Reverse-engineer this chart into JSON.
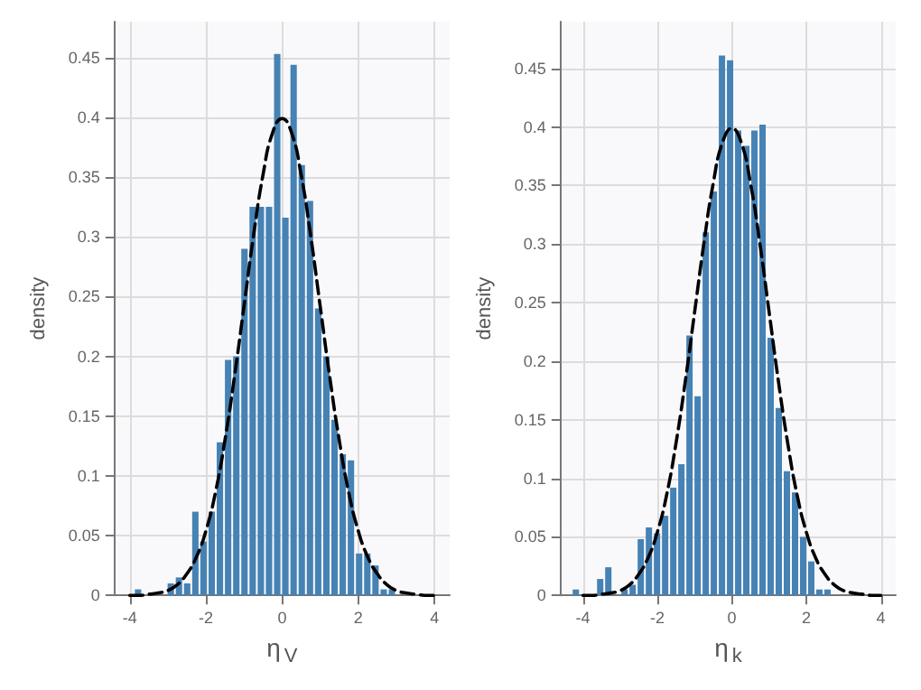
{
  "chart_data": [
    {
      "type": "histogram",
      "xlabel": "η$_{V}$",
      "ylabel": "density",
      "color": "#4682b4",
      "grid": true,
      "bins": [
        -3.89,
        -3.675,
        -3.46,
        -3.245,
        -3.03,
        -2.815,
        -2.6,
        -2.385,
        -2.17,
        -1.955,
        -1.74,
        -1.525,
        -1.31,
        -1.095,
        -0.88,
        -0.665,
        -0.45,
        -0.235,
        -0.02,
        0.195,
        0.41,
        0.625,
        0.84,
        1.055,
        1.27,
        1.485,
        1.7,
        1.915,
        2.13,
        2.345,
        2.56,
        2.775,
        2.99
      ],
      "values": [
        0.005,
        0,
        0,
        0,
        0.01,
        0.015,
        0.01,
        0.07,
        0.045,
        0.07,
        0.128,
        0.197,
        0.2,
        0.29,
        0.325,
        0.325,
        0.325,
        0.453,
        0.316,
        0.444,
        0.36,
        0.33,
        0.24,
        0.2,
        0.147,
        0.118,
        0.113,
        0.035,
        0.035,
        0.025,
        0.005,
        0.005
      ],
      "series": [
        {
          "type": "line",
          "color": "#000000",
          "line_style": "dashed",
          "marker": "none",
          "x": [
            -4,
            -3.75,
            -3.5,
            -3.25,
            -3,
            -2.75,
            -2.5,
            -2.25,
            -2,
            -1.75,
            -1.5,
            -1.25,
            -1,
            -0.75,
            -0.5,
            -0.25,
            0,
            0.25,
            0.5,
            0.75,
            1,
            1.25,
            1.5,
            1.75,
            2,
            2.25,
            2.5,
            2.75,
            3,
            3.25,
            3.5,
            3.75,
            4
          ],
          "values": [
            0,
            0,
            0.001,
            0.002,
            0.004,
            0.009,
            0.018,
            0.032,
            0.054,
            0.086,
            0.13,
            0.183,
            0.242,
            0.301,
            0.352,
            0.387,
            0.399,
            0.387,
            0.352,
            0.301,
            0.242,
            0.183,
            0.13,
            0.086,
            0.054,
            0.032,
            0.018,
            0.009,
            0.004,
            0.002,
            0.001,
            0,
            0
          ]
        }
      ],
      "xlim": [
        -4.4,
        4.4
      ],
      "xticks": [
        -4,
        -2,
        0,
        2,
        4
      ],
      "ylim": [
        0,
        0.48
      ],
      "yticks": [
        0,
        0.05,
        0.1,
        0.15,
        0.2,
        0.25,
        0.3,
        0.35,
        0.4,
        0.45
      ]
    },
    {
      "type": "histogram",
      "xlabel": "η$_{k}$",
      "ylabel": "density",
      "color": "#4682b4",
      "grid": true,
      "bins": [
        -4.299,
        -4.081,
        -3.863,
        -3.645,
        -3.427,
        -3.209,
        -2.991,
        -2.773,
        -2.555,
        -2.337,
        -2.119,
        -1.901,
        -1.683,
        -1.465,
        -1.247,
        -1.029,
        -0.811,
        -0.593,
        -0.375,
        -0.157,
        0.061,
        0.279,
        0.497,
        0.715,
        0.933,
        1.151,
        1.369,
        1.587,
        1.805,
        2.023,
        2.241,
        2.459,
        2.677
      ],
      "values": [
        0.005,
        0,
        0,
        0.014,
        0.024,
        0,
        0.005,
        0.009,
        0.048,
        0.058,
        0.053,
        0.068,
        0.092,
        0.112,
        0.222,
        0.17,
        0.31,
        0.345,
        0.461,
        0.457,
        0.397,
        0.384,
        0.397,
        0.402,
        0.22,
        0.16,
        0.106,
        0.088,
        0.05,
        0.029,
        0.005,
        0.005
      ],
      "series": [
        {
          "type": "line",
          "color": "#000000",
          "line_style": "dashed",
          "marker": "none",
          "x": [
            -4,
            -3.75,
            -3.5,
            -3.25,
            -3,
            -2.75,
            -2.5,
            -2.25,
            -2,
            -1.75,
            -1.5,
            -1.25,
            -1,
            -0.75,
            -0.5,
            -0.25,
            0,
            0.25,
            0.5,
            0.75,
            1,
            1.25,
            1.5,
            1.75,
            2,
            2.25,
            2.5,
            2.75,
            3,
            3.25,
            3.5,
            3.75,
            4
          ],
          "values": [
            0,
            0,
            0.001,
            0.002,
            0.004,
            0.009,
            0.018,
            0.032,
            0.054,
            0.086,
            0.13,
            0.183,
            0.242,
            0.301,
            0.352,
            0.387,
            0.399,
            0.387,
            0.352,
            0.301,
            0.242,
            0.183,
            0.13,
            0.086,
            0.054,
            0.032,
            0.018,
            0.009,
            0.004,
            0.002,
            0.001,
            0,
            0
          ]
        }
      ],
      "xlim": [
        -4.6,
        4.4
      ],
      "xticks": [
        -4,
        -2,
        0,
        2,
        4
      ],
      "ylim": [
        0,
        0.49
      ],
      "yticks": [
        0,
        0.05,
        0.1,
        0.15,
        0.2,
        0.25,
        0.3,
        0.35,
        0.4,
        0.45
      ]
    }
  ]
}
